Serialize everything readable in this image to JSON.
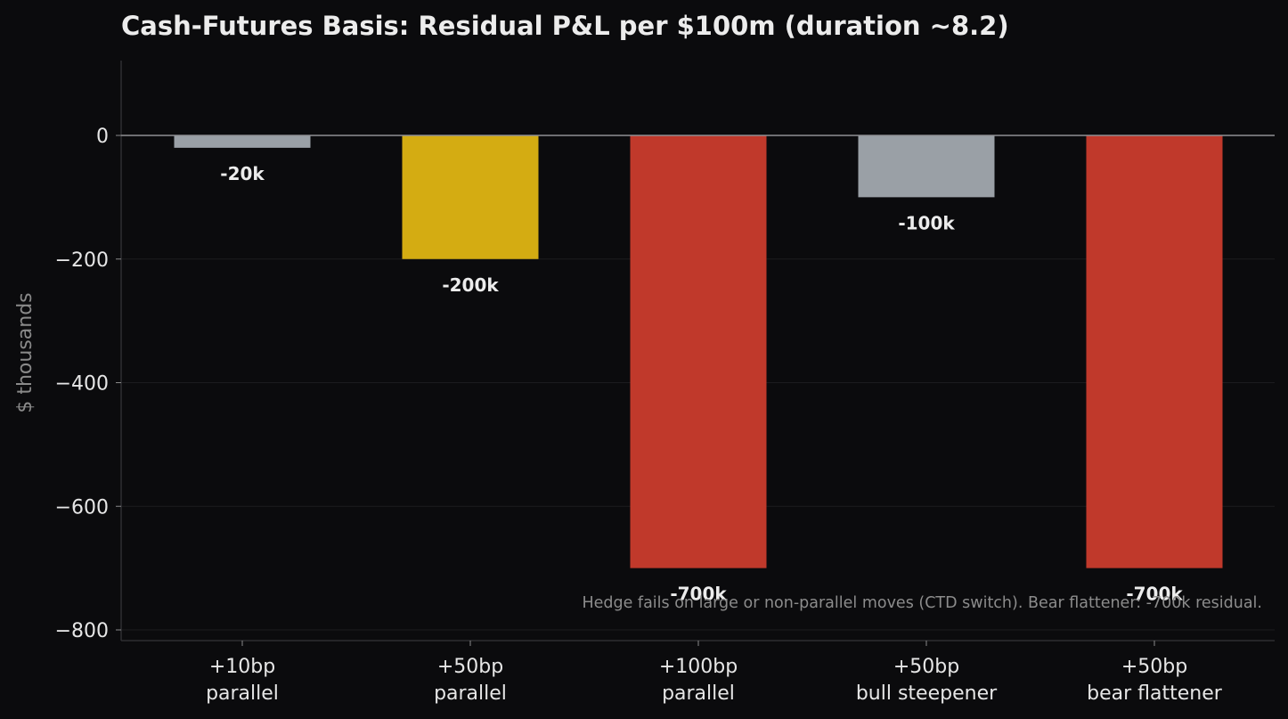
{
  "chart_data": {
    "type": "bar",
    "title": "Cash-Futures Basis: Residual P&L per $100m (duration ~8.2)",
    "xlabel": "",
    "ylabel": "$ thousands",
    "ylim": [
      -820,
      120
    ],
    "yticks": [
      0,
      -200,
      -400,
      -600,
      -800
    ],
    "ytick_labels": [
      "0",
      "−200",
      "−400",
      "−600",
      "−800"
    ],
    "categories": [
      [
        "+10bp",
        "parallel"
      ],
      [
        "+50bp",
        "parallel"
      ],
      [
        "+100bp",
        "parallel"
      ],
      [
        "+50bp",
        "bull steepener"
      ],
      [
        "+50bp",
        "bear flattener"
      ]
    ],
    "values": [
      -20,
      -200,
      -700,
      -100,
      -700
    ],
    "data_labels": [
      "-20k",
      "-200k",
      "-700k",
      "-100k",
      "-700k"
    ],
    "colors": [
      "#9aa0a6",
      "#d4ac12",
      "#c0392b",
      "#9aa0a6",
      "#c0392b"
    ],
    "annotation": "Hedge fails on large or non-parallel moves (CTD switch). Bear flattener: -700k residual.",
    "grid": true,
    "legend": "none",
    "background": "#0b0b0d"
  }
}
